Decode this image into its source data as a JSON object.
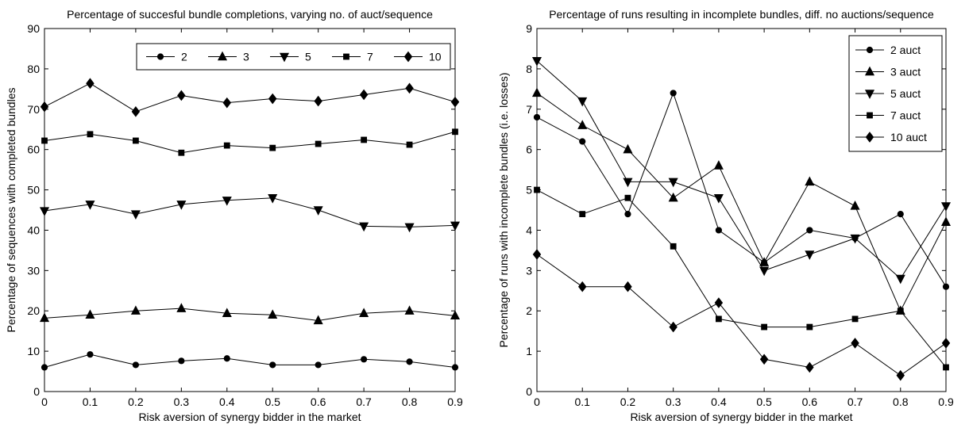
{
  "chart_data": [
    {
      "type": "line",
      "title": "Percentage of succesful bundle completions, varying no. of auct/sequence",
      "xlabel": "Risk aversion of synergy bidder in the market",
      "ylabel": "Percentage of sequences with completed bundles",
      "x": [
        0,
        0.1,
        0.2,
        0.3,
        0.4,
        0.5,
        0.6,
        0.7,
        0.8,
        0.9
      ],
      "xlim": [
        0,
        0.9
      ],
      "ylim": [
        0,
        90
      ],
      "xticks": [
        "0",
        "0.1",
        "0.2",
        "0.3",
        "0.4",
        "0.5",
        "0.6",
        "0.7",
        "0.8",
        "0.9"
      ],
      "yticks": [
        "0",
        "10",
        "20",
        "30",
        "40",
        "50",
        "60",
        "70",
        "80",
        "90"
      ],
      "grid": false,
      "legend_position": "top-right",
      "legend_orientation": "horizontal",
      "series": [
        {
          "name": "2",
          "marker": "circle",
          "values": [
            6,
            9.2,
            6.6,
            7.6,
            8.2,
            6.6,
            6.6,
            8,
            7.4,
            6
          ]
        },
        {
          "name": "3",
          "marker": "triangle-up",
          "values": [
            18.2,
            19,
            20,
            20.6,
            19.4,
            19,
            17.6,
            19.4,
            20,
            18.8
          ]
        },
        {
          "name": "5",
          "marker": "triangle-down",
          "values": [
            44.8,
            46.4,
            44,
            46.4,
            47.4,
            48,
            45,
            41,
            40.8,
            41.2
          ]
        },
        {
          "name": "7",
          "marker": "square",
          "values": [
            62.2,
            63.8,
            62.2,
            59.2,
            61,
            60.4,
            61.4,
            62.4,
            61.2,
            64.4
          ]
        },
        {
          "name": "10",
          "marker": "diamond",
          "values": [
            70.6,
            76.4,
            69.4,
            73.4,
            71.6,
            72.6,
            72,
            73.6,
            75.2,
            71.8
          ]
        }
      ]
    },
    {
      "type": "line",
      "title": "Percentage of runs resulting in incomplete bundles, diff. no auctions/sequence",
      "xlabel": "Risk aversion of synergy bidder in the market",
      "ylabel": "Percentage of runs with incomplete bundles (i.e. losses)",
      "x": [
        0,
        0.1,
        0.2,
        0.3,
        0.4,
        0.5,
        0.6,
        0.7,
        0.8,
        0.9
      ],
      "xlim": [
        0,
        0.9
      ],
      "ylim": [
        0,
        9
      ],
      "xticks": [
        "0",
        "0.1",
        "0.2",
        "0.3",
        "0.4",
        "0.5",
        "0.6",
        "0.7",
        "0.8",
        "0.9"
      ],
      "yticks": [
        "0",
        "1",
        "2",
        "3",
        "4",
        "5",
        "6",
        "7",
        "8",
        "9"
      ],
      "grid": false,
      "legend_position": "top-right",
      "legend_orientation": "vertical",
      "series": [
        {
          "name": "2 auct",
          "marker": "circle",
          "values": [
            6.8,
            6.2,
            4.4,
            7.4,
            4,
            3.2,
            4,
            3.8,
            4.4,
            2.6
          ]
        },
        {
          "name": "3 auct",
          "marker": "triangle-up",
          "values": [
            7.4,
            6.6,
            6,
            4.8,
            5.6,
            3.2,
            5.2,
            4.6,
            2,
            4.2
          ]
        },
        {
          "name": "5 auct",
          "marker": "triangle-down",
          "values": [
            8.2,
            7.2,
            5.2,
            5.2,
            4.8,
            3,
            3.4,
            3.8,
            2.8,
            4.6
          ]
        },
        {
          "name": "7 auct",
          "marker": "square",
          "values": [
            5,
            4.4,
            4.8,
            3.6,
            1.8,
            1.6,
            1.6,
            1.8,
            2,
            0.6
          ]
        },
        {
          "name": "10 auct",
          "marker": "diamond",
          "values": [
            3.4,
            2.6,
            2.6,
            1.6,
            2.2,
            0.8,
            0.6,
            1.2,
            0.4,
            1.2
          ]
        }
      ]
    }
  ]
}
